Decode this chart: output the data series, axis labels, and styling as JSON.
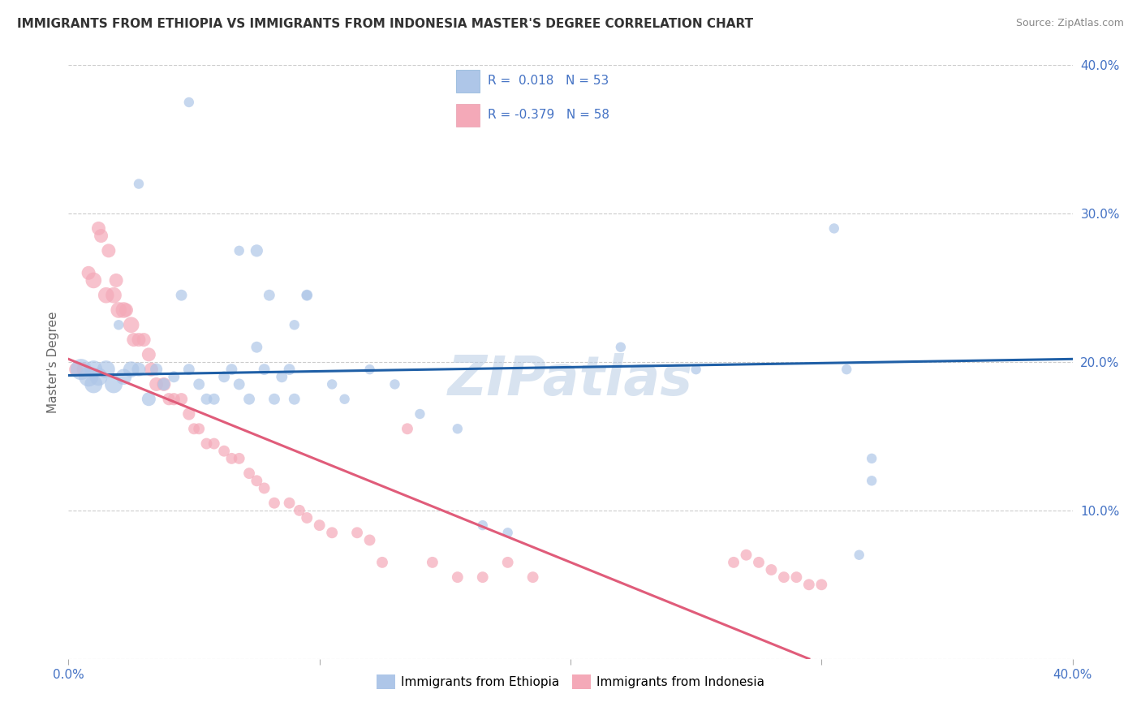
{
  "title": "IMMIGRANTS FROM ETHIOPIA VS IMMIGRANTS FROM INDONESIA MASTER'S DEGREE CORRELATION CHART",
  "source": "Source: ZipAtlas.com",
  "ylabel": "Master's Degree",
  "xlim": [
    0.0,
    0.4
  ],
  "ylim": [
    0.0,
    0.4
  ],
  "yticks": [
    0.0,
    0.1,
    0.2,
    0.3,
    0.4
  ],
  "ytick_labels": [
    "",
    "10.0%",
    "20.0%",
    "30.0%",
    "40.0%"
  ],
  "xtick_positions": [
    0.0,
    0.1,
    0.2,
    0.3,
    0.4
  ],
  "xtick_labels": [
    "0.0%",
    "",
    "",
    "",
    "40.0%"
  ],
  "color_ethiopia": "#aec6e8",
  "color_indonesia": "#f4a9b8",
  "line_color_ethiopia": "#1f5fa6",
  "line_color_indonesia": "#e05c7a",
  "watermark": "ZIPatlas",
  "background_color": "#ffffff",
  "ethiopia_x": [
    0.048,
    0.028,
    0.068,
    0.02,
    0.045,
    0.075,
    0.08,
    0.095,
    0.09,
    0.095,
    0.01,
    0.005,
    0.008,
    0.01,
    0.012,
    0.015,
    0.018,
    0.022,
    0.025,
    0.028,
    0.032,
    0.035,
    0.038,
    0.042,
    0.048,
    0.052,
    0.055,
    0.058,
    0.062,
    0.065,
    0.068,
    0.072,
    0.075,
    0.078,
    0.082,
    0.085,
    0.088,
    0.09,
    0.105,
    0.11,
    0.12,
    0.13,
    0.14,
    0.155,
    0.165,
    0.175,
    0.22,
    0.25,
    0.305,
    0.31,
    0.315,
    0.32,
    0.32
  ],
  "ethiopia_y": [
    0.375,
    0.32,
    0.275,
    0.225,
    0.245,
    0.275,
    0.245,
    0.245,
    0.225,
    0.245,
    0.195,
    0.195,
    0.19,
    0.185,
    0.19,
    0.195,
    0.185,
    0.19,
    0.195,
    0.195,
    0.175,
    0.195,
    0.185,
    0.19,
    0.195,
    0.185,
    0.175,
    0.175,
    0.19,
    0.195,
    0.185,
    0.175,
    0.21,
    0.195,
    0.175,
    0.19,
    0.195,
    0.175,
    0.185,
    0.175,
    0.195,
    0.185,
    0.165,
    0.155,
    0.09,
    0.085,
    0.21,
    0.195,
    0.29,
    0.195,
    0.07,
    0.135,
    0.12
  ],
  "ethiopia_size": [
    80,
    80,
    80,
    80,
    100,
    120,
    100,
    100,
    80,
    80,
    250,
    350,
    300,
    250,
    250,
    250,
    250,
    200,
    200,
    150,
    150,
    120,
    120,
    100,
    100,
    100,
    100,
    100,
    100,
    100,
    100,
    100,
    100,
    100,
    100,
    100,
    100,
    100,
    80,
    80,
    80,
    80,
    80,
    80,
    80,
    80,
    80,
    80,
    80,
    80,
    80,
    80,
    80
  ],
  "indonesia_x": [
    0.003,
    0.006,
    0.008,
    0.01,
    0.012,
    0.013,
    0.015,
    0.016,
    0.018,
    0.019,
    0.02,
    0.022,
    0.023,
    0.025,
    0.026,
    0.028,
    0.03,
    0.032,
    0.033,
    0.035,
    0.038,
    0.04,
    0.042,
    0.045,
    0.048,
    0.05,
    0.052,
    0.055,
    0.058,
    0.062,
    0.065,
    0.068,
    0.072,
    0.075,
    0.078,
    0.082,
    0.088,
    0.092,
    0.095,
    0.1,
    0.105,
    0.115,
    0.12,
    0.125,
    0.135,
    0.145,
    0.155,
    0.165,
    0.175,
    0.185,
    0.265,
    0.27,
    0.275,
    0.28,
    0.285,
    0.29,
    0.295,
    0.3
  ],
  "indonesia_y": [
    0.195,
    0.195,
    0.26,
    0.255,
    0.29,
    0.285,
    0.245,
    0.275,
    0.245,
    0.255,
    0.235,
    0.235,
    0.235,
    0.225,
    0.215,
    0.215,
    0.215,
    0.205,
    0.195,
    0.185,
    0.185,
    0.175,
    0.175,
    0.175,
    0.165,
    0.155,
    0.155,
    0.145,
    0.145,
    0.14,
    0.135,
    0.135,
    0.125,
    0.12,
    0.115,
    0.105,
    0.105,
    0.1,
    0.095,
    0.09,
    0.085,
    0.085,
    0.08,
    0.065,
    0.155,
    0.065,
    0.055,
    0.055,
    0.065,
    0.055,
    0.065,
    0.07,
    0.065,
    0.06,
    0.055,
    0.055,
    0.05,
    0.05
  ],
  "indonesia_size": [
    150,
    150,
    150,
    200,
    150,
    150,
    200,
    150,
    200,
    150,
    200,
    200,
    150,
    200,
    150,
    150,
    150,
    150,
    150,
    150,
    150,
    120,
    120,
    120,
    120,
    100,
    100,
    100,
    100,
    100,
    100,
    100,
    100,
    100,
    100,
    100,
    100,
    100,
    100,
    100,
    100,
    100,
    100,
    100,
    100,
    100,
    100,
    100,
    100,
    100,
    100,
    100,
    100,
    100,
    100,
    100,
    100,
    100
  ],
  "eth_line_x": [
    0.0,
    0.4
  ],
  "eth_line_y": [
    0.191,
    0.202
  ],
  "ind_line_x": [
    0.0,
    0.295
  ],
  "ind_line_y": [
    0.202,
    0.0
  ]
}
